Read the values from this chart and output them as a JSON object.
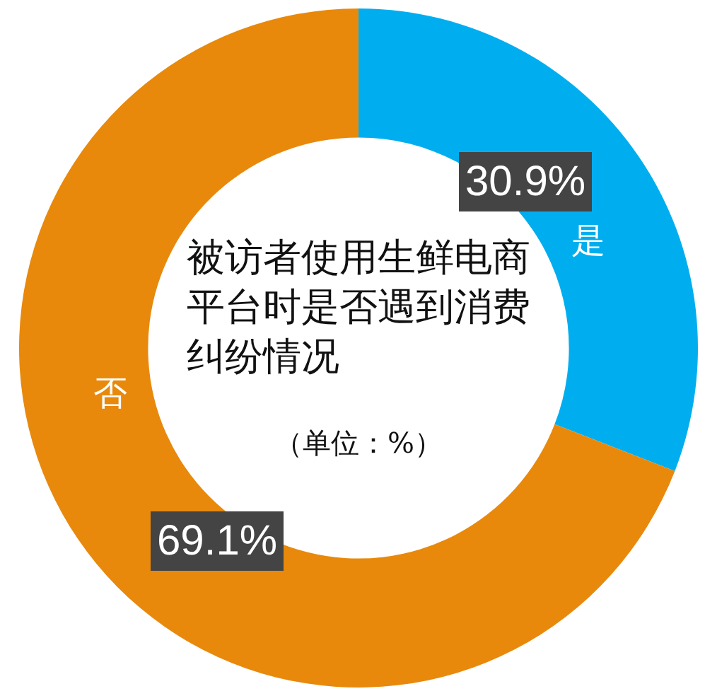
{
  "chart_data": {
    "type": "donut",
    "title": "被访者使用生鲜电商平台时是否遇到消费纠纷情况",
    "subtitle": "（单位：%）",
    "categories": [
      "是",
      "否"
    ],
    "values": [
      30.9,
      69.1
    ],
    "colors": [
      "#00aeef",
      "#e8890c"
    ],
    "value_labels": [
      "30.9%",
      "69.1%"
    ],
    "legend": false
  }
}
